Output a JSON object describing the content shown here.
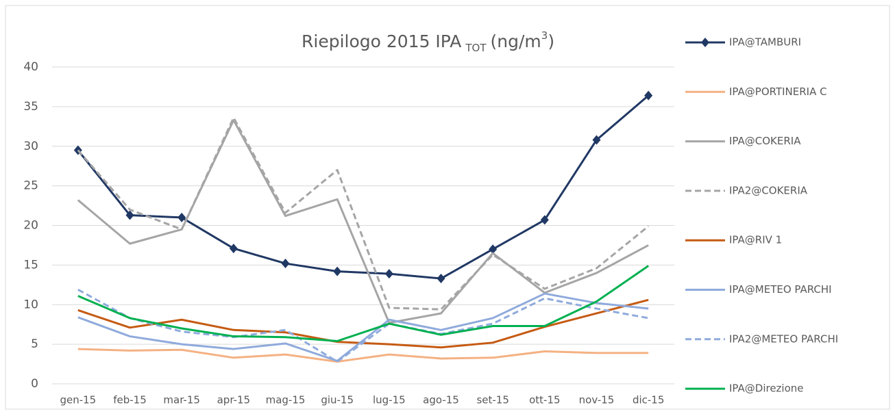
{
  "chart_data": {
    "type": "line",
    "title": "Riepilogo 2015 IPA",
    "title_subscript": "TOT",
    "title_unit": "(ng/m",
    "title_superscript": "3",
    "title_unit_end": ")",
    "categories": [
      "gen-15",
      "feb-15",
      "mar-15",
      "apr-15",
      "mag-15",
      "giu-15",
      "lug-15",
      "ago-15",
      "set-15",
      "ott-15",
      "nov-15",
      "dic-15"
    ],
    "ylim": [
      0,
      40
    ],
    "yticks": [
      0,
      5,
      10,
      15,
      20,
      25,
      30,
      35,
      40
    ],
    "grid": true,
    "legend": "right",
    "series": [
      {
        "name": "IPA@TAMBURI",
        "color": "#203864",
        "marker": "diamond",
        "dashed": false,
        "values": [
          29.5,
          21.3,
          21.0,
          17.1,
          15.2,
          14.2,
          13.9,
          13.3,
          17.0,
          20.7,
          30.8,
          36.4
        ]
      },
      {
        "name": "IPA@PORTINERIA C",
        "color": "#f4b183",
        "dashed": false,
        "values": [
          4.4,
          4.2,
          4.3,
          3.3,
          3.7,
          2.8,
          3.7,
          3.2,
          3.3,
          4.1,
          3.9,
          3.9
        ]
      },
      {
        "name": "IPA@COKERIA",
        "color": "#a5a5a5",
        "dashed": false,
        "values": [
          23.2,
          17.7,
          19.5,
          33.3,
          21.2,
          23.3,
          7.7,
          8.9,
          16.5,
          11.5,
          14.0,
          17.5
        ]
      },
      {
        "name": "IPA2@COKERIA",
        "color": "#a5a5a5",
        "dashed": true,
        "values": [
          29.5,
          22.0,
          19.5,
          33.6,
          21.6,
          27.0,
          9.6,
          9.4,
          16.3,
          12.0,
          14.6,
          19.9
        ]
      },
      {
        "name": "IPA@RIV 1",
        "color": "#c55a11",
        "dashed": false,
        "values": [
          9.3,
          7.1,
          8.1,
          6.8,
          6.5,
          5.3,
          5.0,
          4.6,
          5.2,
          7.2,
          8.9,
          10.6
        ]
      },
      {
        "name": "IPA@METEO PARCHI",
        "color": "#8faadc",
        "dashed": false,
        "values": [
          8.4,
          6.0,
          5.0,
          4.4,
          5.1,
          2.9,
          8.1,
          6.8,
          8.3,
          11.4,
          10.2,
          9.5
        ]
      },
      {
        "name": "IPA2@METEO PARCHI",
        "color": "#8faadc",
        "dashed": true,
        "values": [
          11.9,
          8.3,
          6.6,
          5.9,
          6.8,
          2.8,
          7.6,
          6.3,
          7.6,
          10.8,
          9.5,
          8.3
        ]
      },
      {
        "name": "IPA@Direzione",
        "color": "#00b050",
        "dashed": false,
        "values": [
          11.1,
          8.3,
          7.0,
          6.0,
          5.9,
          5.4,
          7.6,
          6.2,
          7.3,
          7.3,
          10.4,
          14.9
        ]
      }
    ]
  }
}
